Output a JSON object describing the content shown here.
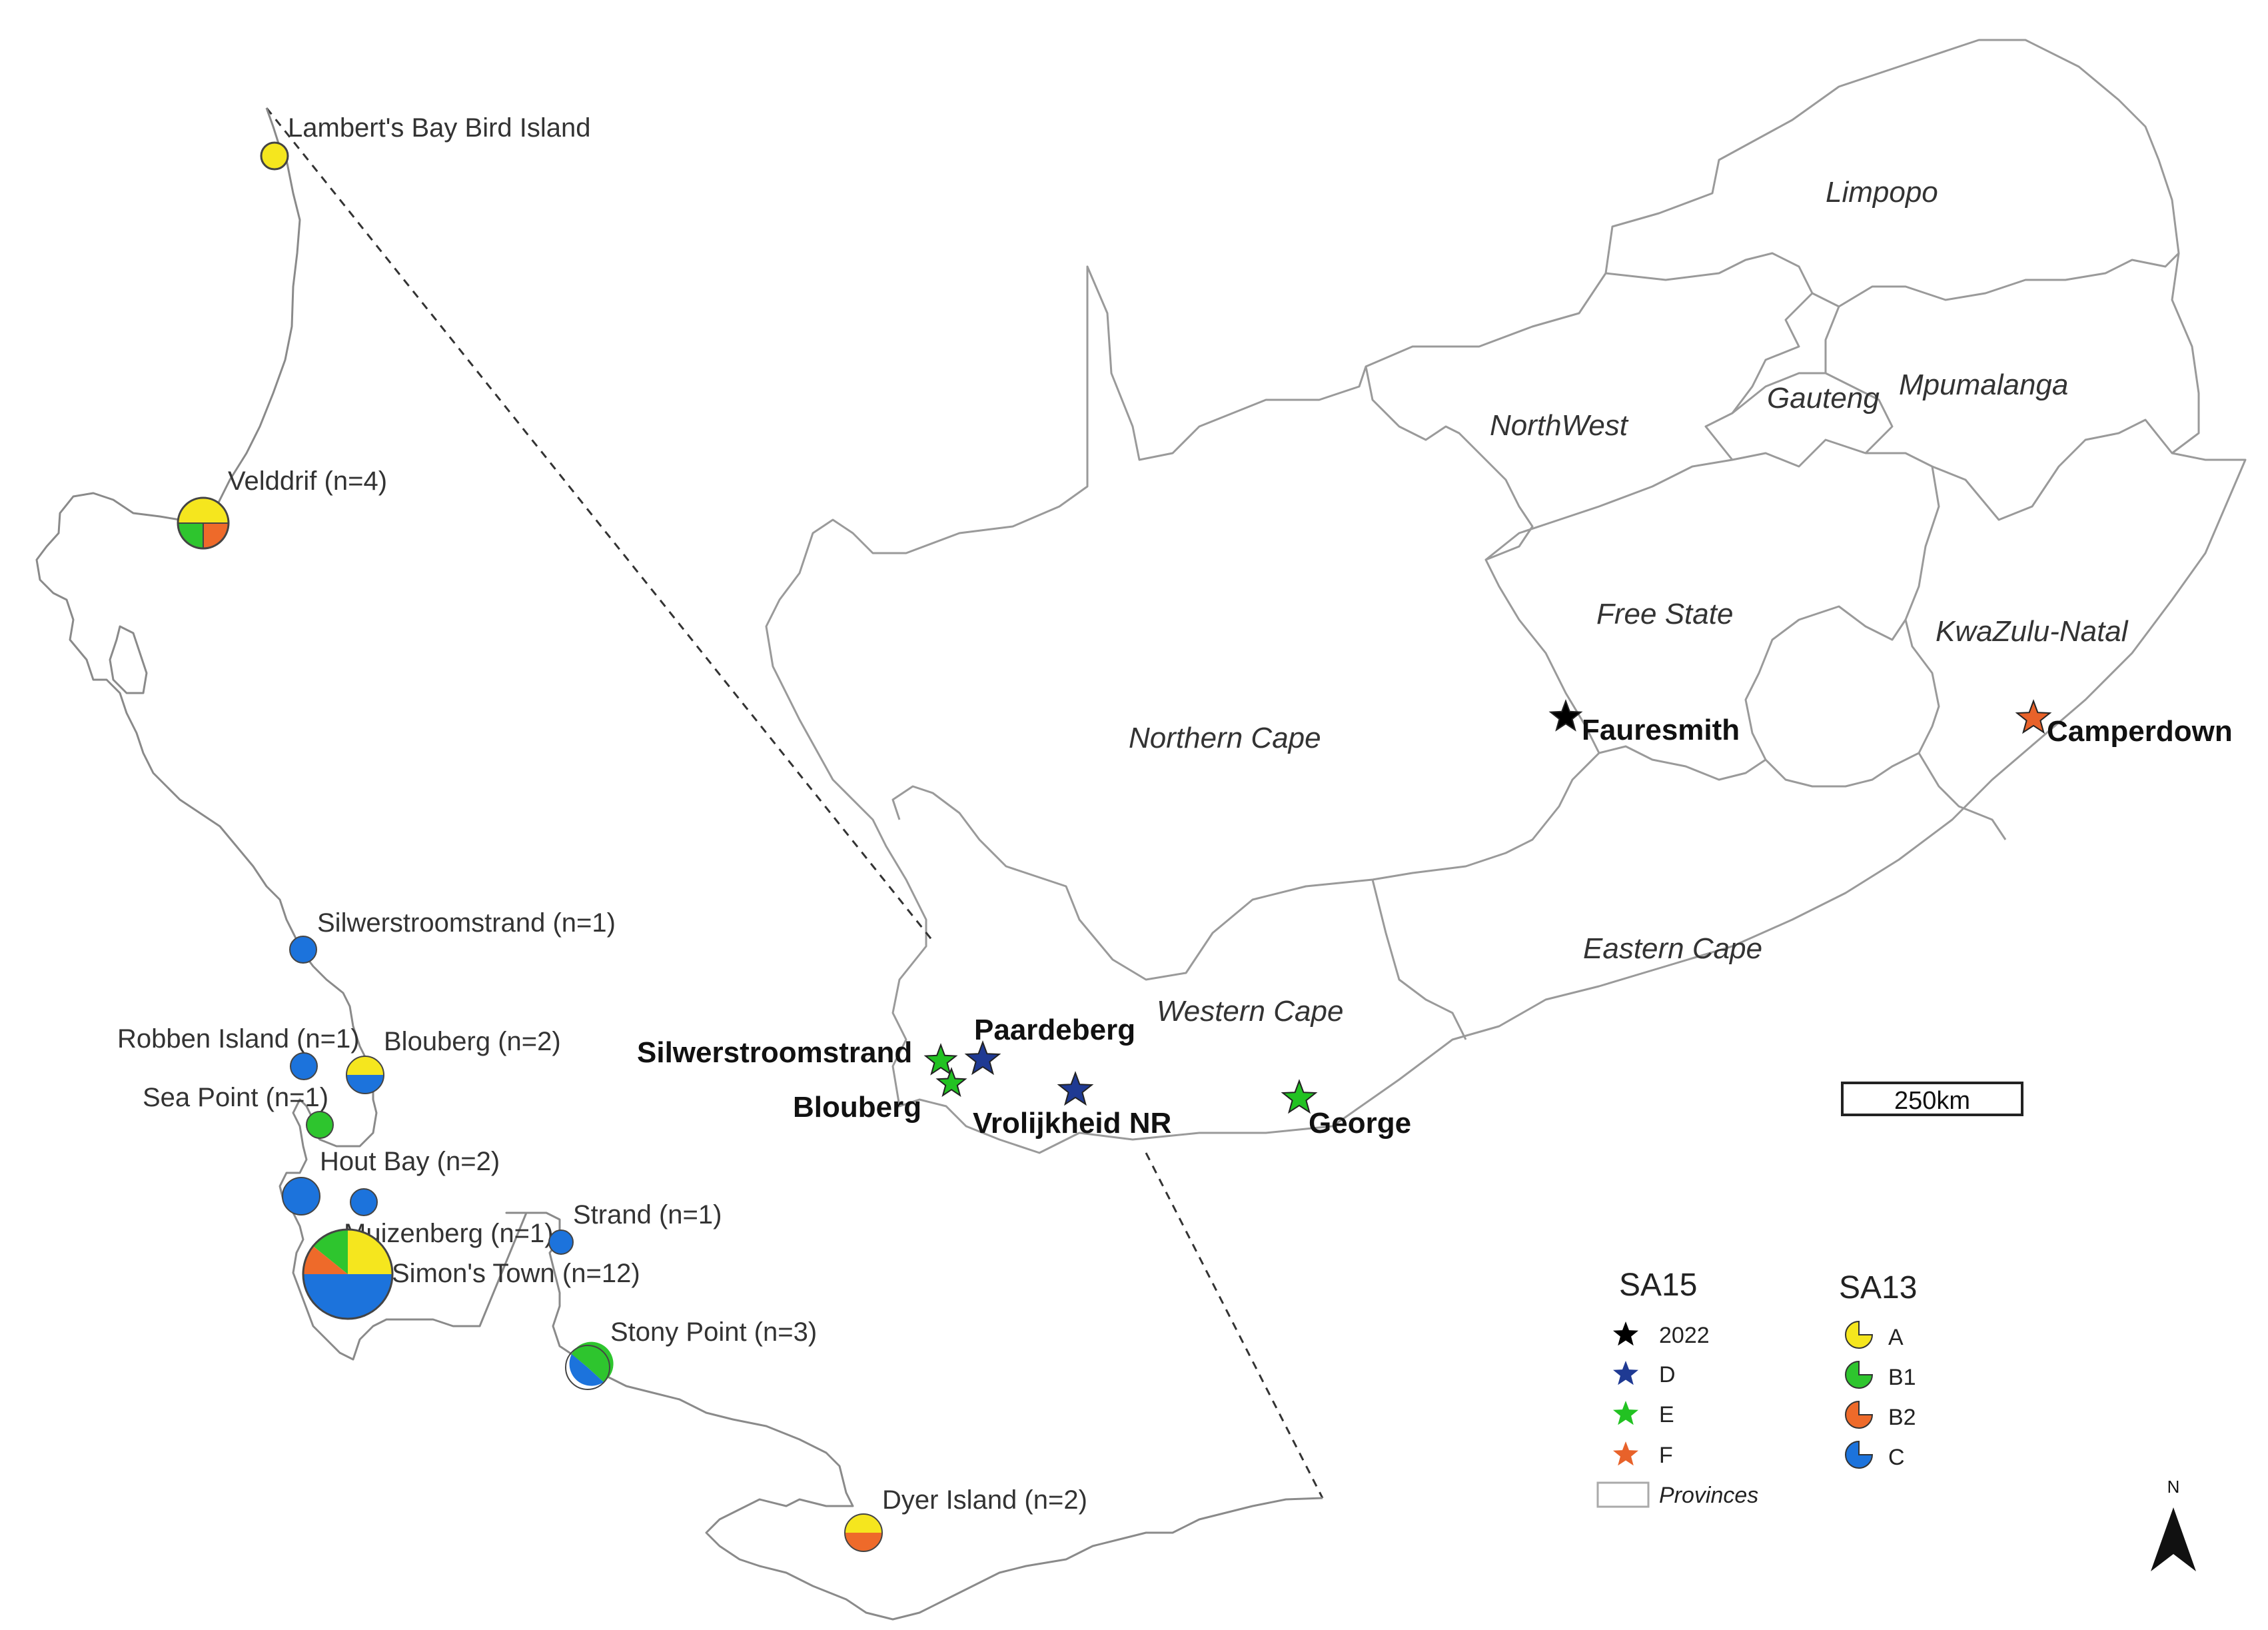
{
  "provinces": [
    "Limpopo",
    "NorthWest",
    "Gauteng",
    "Mpumalanga",
    "Free State",
    "KwaZulu-Natal",
    "Northern Cape",
    "Eastern Cape",
    "Western Cape"
  ],
  "inset_sites": [
    {
      "label": "Lambert's Bay Bird Island",
      "haplotypes": [
        "A"
      ]
    },
    {
      "label": "Velddrif (n=4)",
      "haplotypes": [
        "A",
        "B1",
        "B2"
      ]
    },
    {
      "label": "Silwerstroomstrand (n=1)",
      "haplotypes": [
        "C"
      ]
    },
    {
      "label": "Robben Island (n=1)",
      "haplotypes": [
        "C"
      ]
    },
    {
      "label": "Blouberg (n=2)",
      "haplotypes": [
        "A",
        "C"
      ]
    },
    {
      "label": "Sea Point (n=1)",
      "haplotypes": [
        "B1"
      ]
    },
    {
      "label": "Hout Bay (n=2)",
      "haplotypes": [
        "C"
      ]
    },
    {
      "label": "Muizenberg (n=1)",
      "haplotypes": [
        "C"
      ]
    },
    {
      "label": "Strand (n=1)",
      "haplotypes": [
        "C"
      ]
    },
    {
      "label": "Simon's Town (n=12)",
      "haplotypes": [
        "A",
        "B1",
        "B2",
        "C"
      ]
    },
    {
      "label": "Stony Point (n=3)",
      "haplotypes": [
        "B1",
        "C"
      ]
    },
    {
      "label": "Dyer Island (n=2)",
      "haplotypes": [
        "A",
        "B2"
      ]
    }
  ],
  "sa15_sites": [
    {
      "label": "Paardeberg",
      "variant": "D"
    },
    {
      "label": "Silwerstroomstrand",
      "variant": "E"
    },
    {
      "label": "Blouberg",
      "variant": "E"
    },
    {
      "label": "Vrolijkheid NR",
      "variant": "D"
    },
    {
      "label": "George",
      "variant": "E"
    },
    {
      "label": "Fauresmith",
      "variant": "2022"
    },
    {
      "label": "Camperdown",
      "variant": "F"
    }
  ],
  "scale_bar": "250km",
  "north": "N",
  "legend": {
    "sa15_title": "SA15",
    "sa15_items": [
      {
        "label": "2022",
        "color": "#000000"
      },
      {
        "label": "D",
        "color": "#1f3a93"
      },
      {
        "label": "E",
        "color": "#22c222"
      },
      {
        "label": "F",
        "color": "#e8622a"
      }
    ],
    "provinces_label": "Provinces",
    "sa13_title": "SA13",
    "sa13_items": [
      {
        "label": "A",
        "color": "#f5e61e"
      },
      {
        "label": "B1",
        "color": "#2ec52e"
      },
      {
        "label": "B2",
        "color": "#ee6a2a"
      },
      {
        "label": "C",
        "color": "#1c73dc"
      }
    ]
  }
}
